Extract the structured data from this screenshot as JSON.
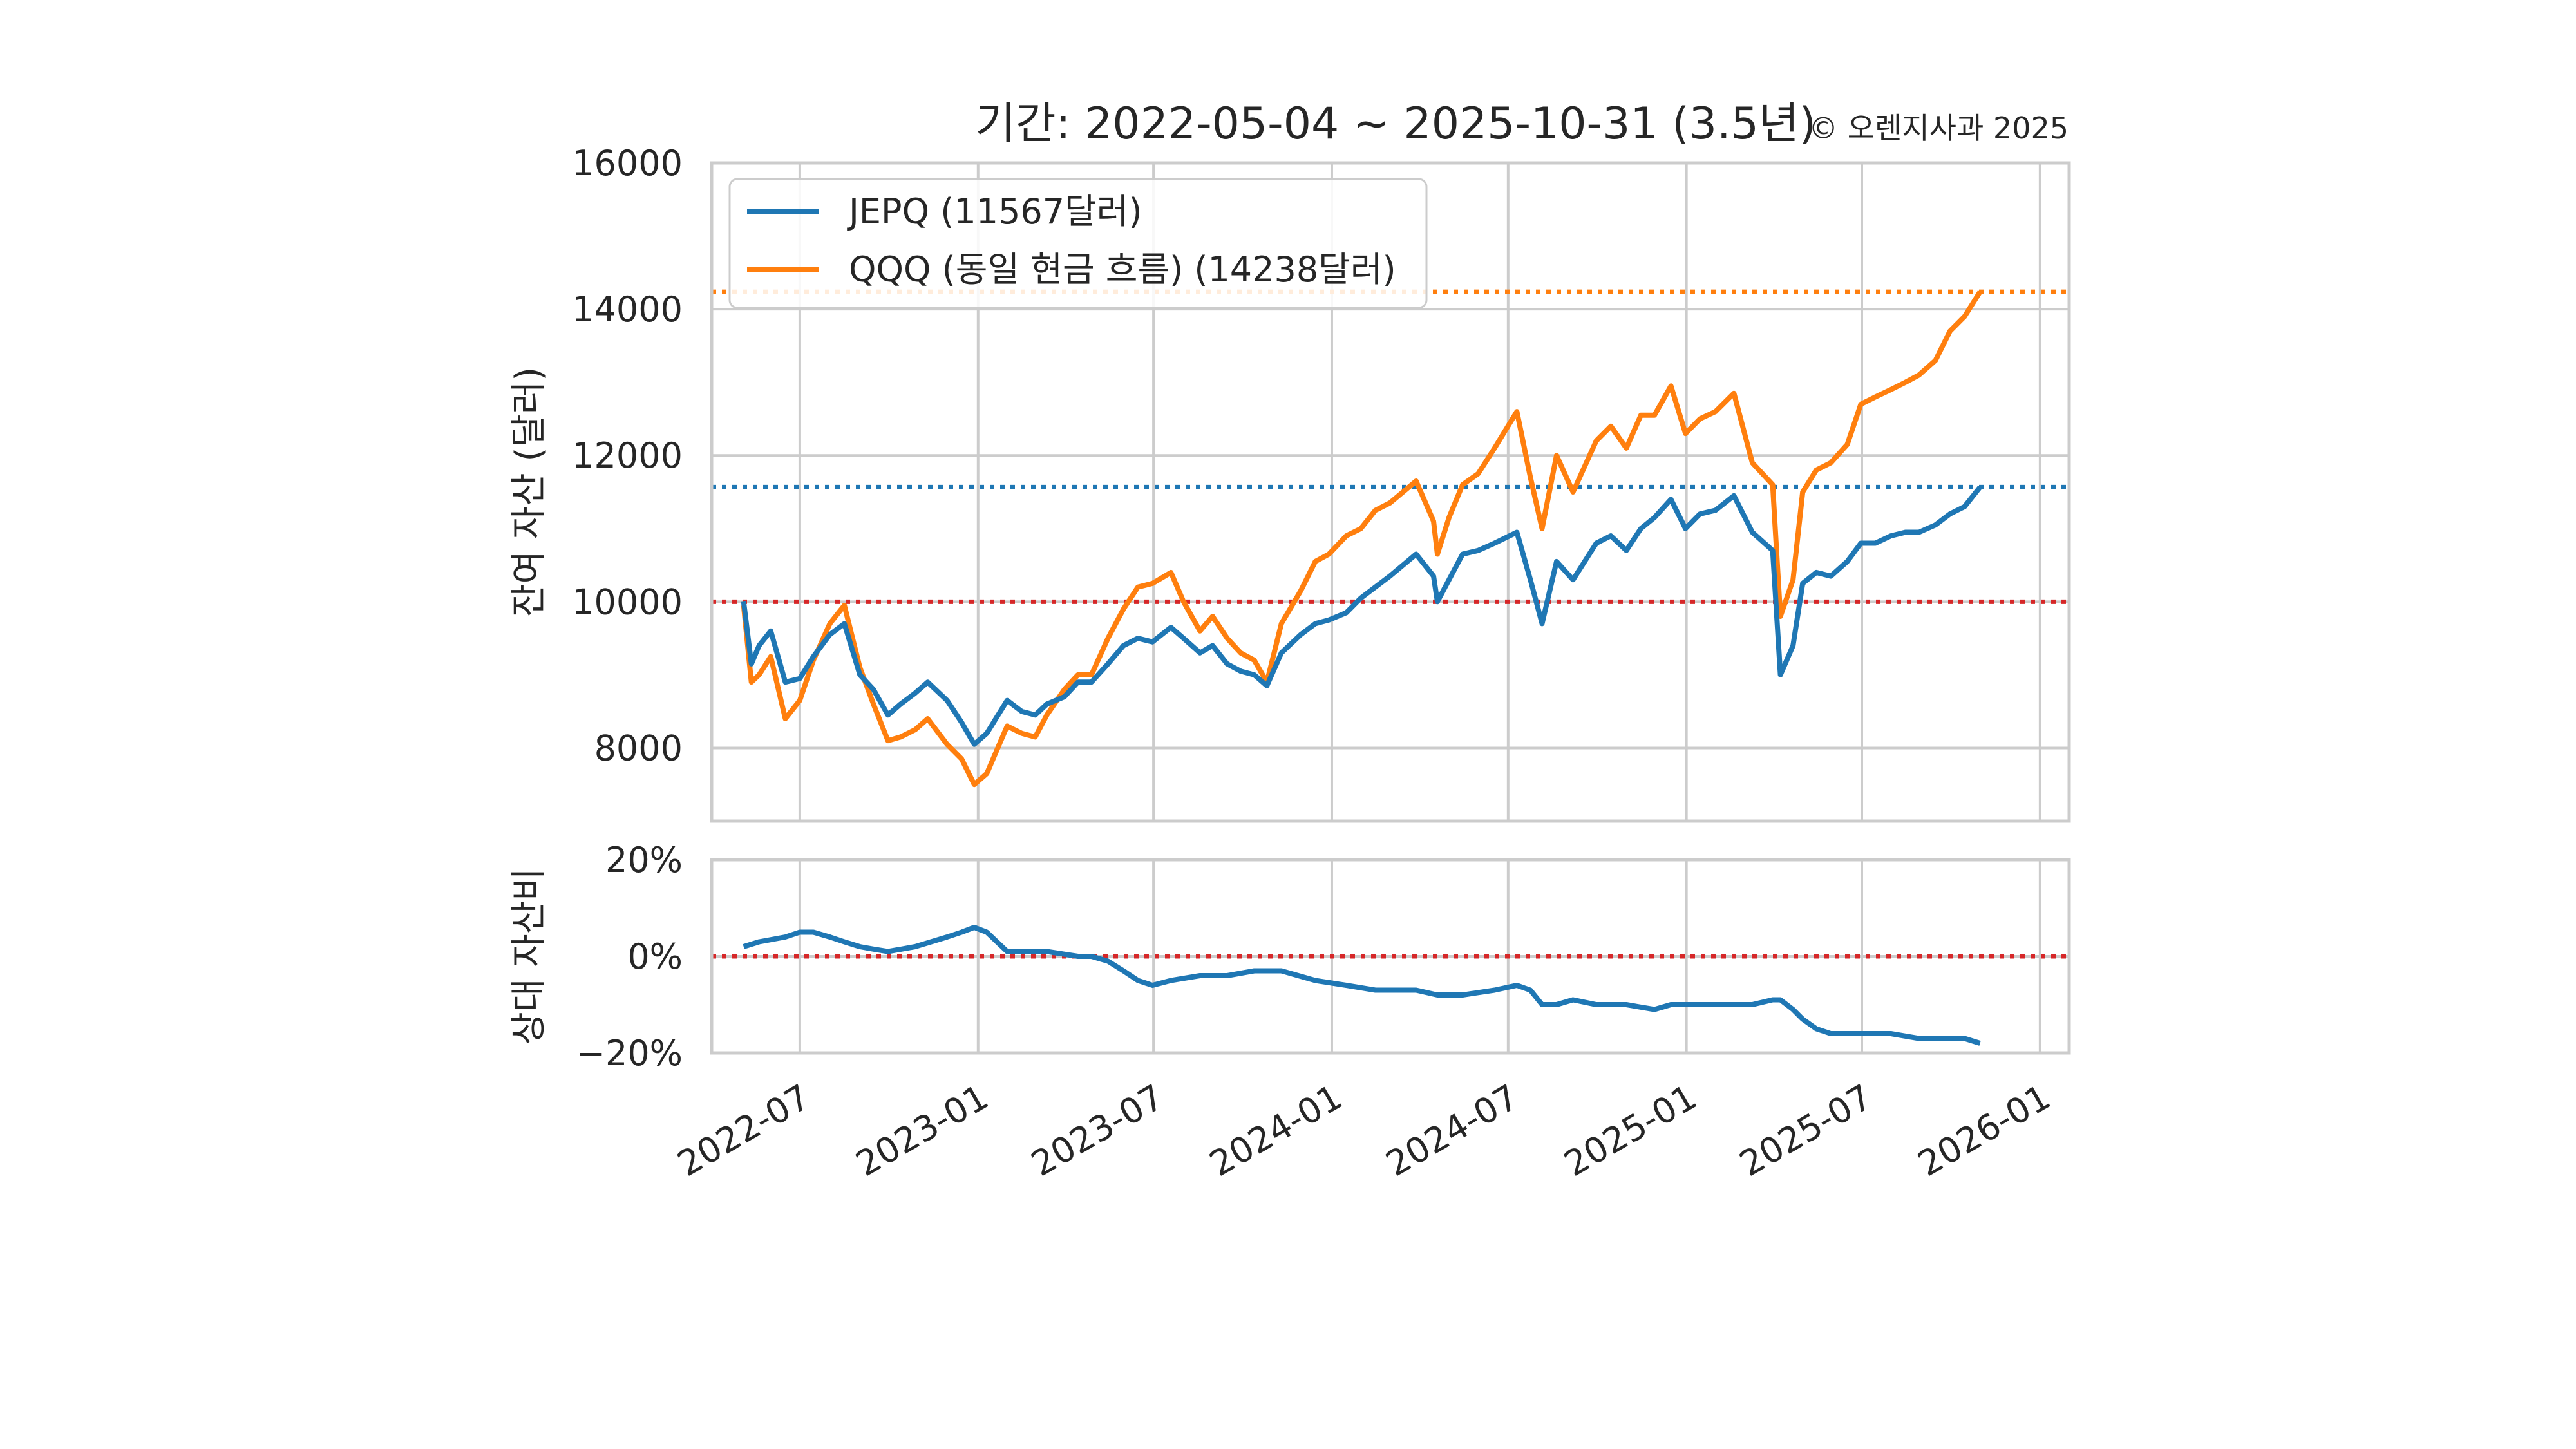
{
  "chart_data": [
    {
      "type": "line",
      "title": "기간: 2022-05-04 ~ 2025-10-31 (3.5년)",
      "copyright": "© 오렌지사과 2025",
      "ylabel": "잔여 자산 (달러)",
      "ylim": [
        7000,
        16000
      ],
      "yticks": [
        8000,
        10000,
        12000,
        14000,
        16000
      ],
      "ytick_labels": [
        "8000",
        "10000",
        "12000",
        "14000",
        "16000"
      ],
      "xlim": [
        "2022-04-01",
        "2026-01-31"
      ],
      "xticks": [
        "2022-07",
        "2023-01",
        "2023-07",
        "2024-01",
        "2024-07",
        "2025-01",
        "2025-07",
        "2026-01"
      ],
      "grid": true,
      "legend_position": "top-left",
      "series": [
        {
          "name": "JEPQ (11567달러)",
          "color": "#1f77b4",
          "x": [
            "2022-05-04",
            "2022-05-12",
            "2022-05-20",
            "2022-06-01",
            "2022-06-16",
            "2022-07-01",
            "2022-07-15",
            "2022-08-01",
            "2022-08-16",
            "2022-09-01",
            "2022-09-15",
            "2022-09-30",
            "2022-10-13",
            "2022-10-28",
            "2022-11-10",
            "2022-11-30",
            "2022-12-15",
            "2022-12-28",
            "2023-01-10",
            "2023-01-31",
            "2023-02-15",
            "2023-03-01",
            "2023-03-13",
            "2023-03-31",
            "2023-04-14",
            "2023-04-28",
            "2023-05-15",
            "2023-05-31",
            "2023-06-15",
            "2023-06-30",
            "2023-07-19",
            "2023-08-01",
            "2023-08-18",
            "2023-08-31",
            "2023-09-15",
            "2023-09-29",
            "2023-10-13",
            "2023-10-26",
            "2023-11-10",
            "2023-11-30",
            "2023-12-15",
            "2023-12-29",
            "2024-01-16",
            "2024-01-31",
            "2024-02-15",
            "2024-03-01",
            "2024-03-28",
            "2024-04-15",
            "2024-04-19",
            "2024-05-01",
            "2024-05-15",
            "2024-05-31",
            "2024-06-17",
            "2024-07-10",
            "2024-07-24",
            "2024-08-05",
            "2024-08-20",
            "2024-09-06",
            "2024-09-30",
            "2024-10-15",
            "2024-10-31",
            "2024-11-15",
            "2024-11-29",
            "2024-12-16",
            "2024-12-31",
            "2025-01-15",
            "2025-01-31",
            "2025-02-19",
            "2025-03-10",
            "2025-03-31",
            "2025-04-08",
            "2025-04-21",
            "2025-05-01",
            "2025-05-15",
            "2025-05-30",
            "2025-06-16",
            "2025-06-30",
            "2025-07-15",
            "2025-07-31",
            "2025-08-15",
            "2025-08-29",
            "2025-09-15",
            "2025-09-30",
            "2025-10-15",
            "2025-10-31"
          ],
          "y": [
            10000,
            9150,
            9400,
            9600,
            8900,
            8950,
            9250,
            9550,
            9700,
            9000,
            8800,
            8450,
            8600,
            8750,
            8900,
            8650,
            8350,
            8050,
            8200,
            8650,
            8500,
            8450,
            8600,
            8700,
            8900,
            8900,
            9150,
            9400,
            9500,
            9450,
            9650,
            9500,
            9300,
            9400,
            9150,
            9050,
            9000,
            8850,
            9300,
            9550,
            9700,
            9750,
            9850,
            10050,
            10200,
            10350,
            10650,
            10350,
            10000,
            10300,
            10650,
            10700,
            10800,
            10950,
            10300,
            9700,
            10550,
            10300,
            10800,
            10900,
            10700,
            11000,
            11150,
            11400,
            11000,
            11200,
            11250,
            11450,
            10950,
            10700,
            9000,
            9400,
            10250,
            10400,
            10350,
            10550,
            10800,
            10800,
            10900,
            10950,
            10950,
            11050,
            11200,
            11300,
            11567
          ]
        },
        {
          "name": "QQQ (동일 현금 흐름) (14238달러)",
          "color": "#ff7f0e",
          "x": [
            "2022-05-04",
            "2022-05-12",
            "2022-05-20",
            "2022-06-01",
            "2022-06-16",
            "2022-07-01",
            "2022-07-15",
            "2022-08-01",
            "2022-08-16",
            "2022-09-01",
            "2022-09-15",
            "2022-09-30",
            "2022-10-13",
            "2022-10-28",
            "2022-11-10",
            "2022-11-30",
            "2022-12-15",
            "2022-12-28",
            "2023-01-10",
            "2023-01-31",
            "2023-02-15",
            "2023-03-01",
            "2023-03-13",
            "2023-03-31",
            "2023-04-14",
            "2023-04-28",
            "2023-05-15",
            "2023-05-31",
            "2023-06-15",
            "2023-06-30",
            "2023-07-19",
            "2023-08-01",
            "2023-08-18",
            "2023-08-31",
            "2023-09-15",
            "2023-09-29",
            "2023-10-13",
            "2023-10-26",
            "2023-11-10",
            "2023-11-30",
            "2023-12-15",
            "2023-12-29",
            "2024-01-16",
            "2024-01-31",
            "2024-02-15",
            "2024-03-01",
            "2024-03-28",
            "2024-04-15",
            "2024-04-19",
            "2024-05-01",
            "2024-05-15",
            "2024-05-31",
            "2024-06-17",
            "2024-07-10",
            "2024-07-24",
            "2024-08-05",
            "2024-08-20",
            "2024-09-06",
            "2024-09-30",
            "2024-10-15",
            "2024-10-31",
            "2024-11-15",
            "2024-11-29",
            "2024-12-16",
            "2024-12-31",
            "2025-01-15",
            "2025-01-31",
            "2025-02-19",
            "2025-03-10",
            "2025-03-31",
            "2025-04-08",
            "2025-04-21",
            "2025-05-01",
            "2025-05-15",
            "2025-05-30",
            "2025-06-16",
            "2025-06-30",
            "2025-07-15",
            "2025-07-31",
            "2025-08-15",
            "2025-08-29",
            "2025-09-15",
            "2025-09-30",
            "2025-10-15",
            "2025-10-31"
          ],
          "y": [
            9950,
            8900,
            9000,
            9250,
            8400,
            8650,
            9200,
            9700,
            9950,
            9100,
            8600,
            8100,
            8150,
            8250,
            8400,
            8050,
            7850,
            7500,
            7650,
            8300,
            8200,
            8150,
            8450,
            8800,
            9000,
            9000,
            9500,
            9900,
            10200,
            10250,
            10400,
            10000,
            9600,
            9800,
            9500,
            9300,
            9200,
            8900,
            9700,
            10150,
            10550,
            10650,
            10900,
            11000,
            11250,
            11350,
            11650,
            11100,
            10650,
            11150,
            11600,
            11750,
            12100,
            12600,
            11700,
            11000,
            12000,
            11500,
            12200,
            12400,
            12100,
            12550,
            12550,
            12950,
            12300,
            12500,
            12600,
            12850,
            11900,
            11600,
            9800,
            10300,
            11500,
            11800,
            11900,
            12150,
            12700,
            12800,
            12900,
            13000,
            13100,
            13300,
            13700,
            13900,
            14238
          ]
        }
      ],
      "reference_lines": [
        {
          "y": 14238,
          "color": "#ff7f0e",
          "style": "dotted"
        },
        {
          "y": 11567,
          "color": "#1f77b4",
          "style": "dotted"
        },
        {
          "y": 10000,
          "color": "#d62728",
          "style": "dotted"
        }
      ]
    },
    {
      "type": "line",
      "ylabel": "상대 자산비",
      "ylim": [
        -20,
        20
      ],
      "yticks": [
        -20,
        0,
        20
      ],
      "ytick_labels": [
        "−20%",
        "0%",
        "20%"
      ],
      "xlim": [
        "2022-04-01",
        "2026-01-31"
      ],
      "xticks": [
        "2022-07",
        "2023-01",
        "2023-07",
        "2024-01",
        "2024-07",
        "2025-01",
        "2025-07",
        "2026-01"
      ],
      "xtick_labels": [
        "2022-07",
        "2023-01",
        "2023-07",
        "2024-01",
        "2024-07",
        "2025-01",
        "2025-07",
        "2026-01"
      ],
      "grid": true,
      "series": [
        {
          "name": "상대 자산비",
          "color": "#1f77b4",
          "x": [
            "2022-05-04",
            "2022-05-20",
            "2022-06-16",
            "2022-07-01",
            "2022-07-15",
            "2022-08-01",
            "2022-08-16",
            "2022-09-01",
            "2022-09-15",
            "2022-09-30",
            "2022-10-28",
            "2022-11-30",
            "2022-12-15",
            "2022-12-28",
            "2023-01-10",
            "2023-01-31",
            "2023-02-15",
            "2023-03-13",
            "2023-04-14",
            "2023-04-28",
            "2023-05-15",
            "2023-05-31",
            "2023-06-15",
            "2023-06-30",
            "2023-07-19",
            "2023-08-18",
            "2023-09-15",
            "2023-10-13",
            "2023-11-10",
            "2023-12-15",
            "2024-01-16",
            "2024-02-15",
            "2024-03-28",
            "2024-04-19",
            "2024-05-15",
            "2024-06-17",
            "2024-07-10",
            "2024-07-24",
            "2024-08-05",
            "2024-08-20",
            "2024-09-06",
            "2024-09-30",
            "2024-10-31",
            "2024-11-29",
            "2024-12-16",
            "2024-12-31",
            "2025-01-31",
            "2025-02-19",
            "2025-03-10",
            "2025-03-31",
            "2025-04-08",
            "2025-04-21",
            "2025-05-01",
            "2025-05-15",
            "2025-05-30",
            "2025-06-30",
            "2025-07-31",
            "2025-08-29",
            "2025-09-30",
            "2025-10-15",
            "2025-10-31"
          ],
          "y": [
            2,
            3,
            4,
            5,
            5,
            4,
            3,
            2,
            1.5,
            1,
            2,
            4,
            5,
            6,
            5,
            1,
            1,
            1,
            0,
            0,
            -1,
            -3,
            -5,
            -6,
            -5,
            -4,
            -4,
            -3,
            -3,
            -5,
            -6,
            -7,
            -7,
            -8,
            -8,
            -7,
            -6,
            -7,
            -10,
            -10,
            -9,
            -10,
            -10,
            -11,
            -10,
            -10,
            -10,
            -10,
            -10,
            -9,
            -9,
            -11,
            -13,
            -15,
            -16,
            -16,
            -16,
            -17,
            -17,
            -17,
            -18
          ]
        }
      ],
      "reference_lines": [
        {
          "y": 0,
          "color": "#d62728",
          "style": "dotted"
        }
      ]
    }
  ]
}
